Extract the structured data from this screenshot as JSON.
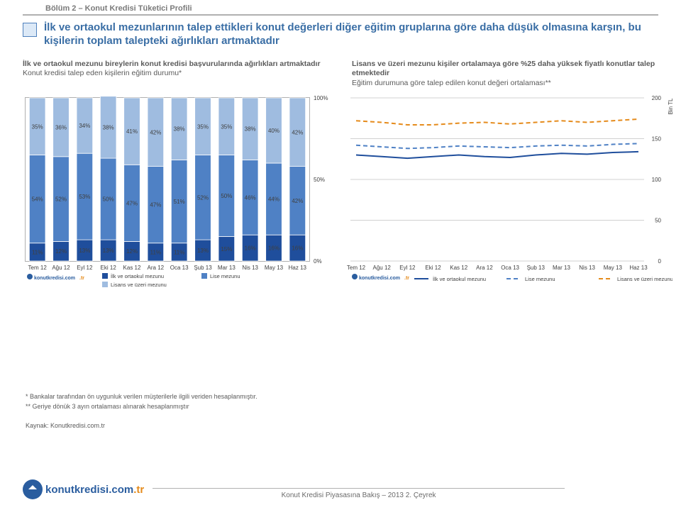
{
  "section_header": "Bölüm 2 – Konut Kredisi Tüketici Profili",
  "highlight": "İlk ve ortaokul mezunlarının talep ettikleri konut değerleri diğer eğitim gruplarına göre daha düşük olmasına karşın, bu kişilerin toplam talepteki ağırlıkları artmaktadır",
  "subtitle_left_l1": "İlk ve ortaokul mezunu bireylerin konut kredisi başvurularında ağırlıkları artmaktadır",
  "subtitle_left_l2": "Konut kredisi talep eden kişilerin eğitim durumu*",
  "subtitle_right_l1": "Lisans ve üzeri mezunu kişiler ortalamaya göre %25 daha yüksek fiyatlı konutlar talep etmektedir",
  "subtitle_right_l2": "Eğitim durumuna göre talep edilen konut değeri ortalaması**",
  "stacked": {
    "type": "stacked-bar-100",
    "categories": [
      "Tem 12",
      "Ağu 12",
      "Eyl 12",
      "Eki 12",
      "Kas 12",
      "Ara 12",
      "Oca 13",
      "Şub 13",
      "Mar 13",
      "Nis 13",
      "May 13",
      "Haz 13"
    ],
    "series": [
      {
        "name": "İlk ve ortaokul mezunu",
        "color": "#1f4e9c",
        "values": [
          11,
          12,
          13,
          13,
          12,
          11,
          11,
          13,
          15,
          16,
          16,
          16
        ]
      },
      {
        "name": "Lise mezunu",
        "color": "#4f81c5",
        "values": [
          54,
          52,
          53,
          50,
          47,
          47,
          51,
          52,
          50,
          46,
          44,
          42
        ]
      },
      {
        "name": "Lisans ve üzeri mezunu",
        "color": "#9fbce0",
        "values": [
          35,
          36,
          34,
          38,
          41,
          42,
          38,
          35,
          35,
          38,
          40,
          42
        ]
      }
    ],
    "ylim": [
      0,
      100
    ],
    "yticks": [
      0,
      50,
      100
    ],
    "ytick_suffix": "%",
    "label_fontsize": 8,
    "grid_color": "#d0d0d0",
    "plot_border_color": "#b0b0b0",
    "background_color": "#ffffff",
    "bar_width": 0.68
  },
  "line": {
    "type": "line",
    "categories": [
      "Tem 12",
      "Ağu 12",
      "Eyl 12",
      "Eki 12",
      "Kas 12",
      "Ara 12",
      "Oca 13",
      "Şub 13",
      "Mar 13",
      "Nis 13",
      "May 13",
      "Haz 13"
    ],
    "series": [
      {
        "name": "İlk ve ortaokul mezunu",
        "color": "#1f4e9c",
        "dash": "solid",
        "values": [
          130,
          128,
          126,
          128,
          130,
          128,
          127,
          130,
          132,
          131,
          133,
          134
        ]
      },
      {
        "name": "Lise mezunu",
        "color": "#4f81c5",
        "dash": "dashed",
        "values": [
          142,
          140,
          138,
          139,
          141,
          140,
          139,
          141,
          142,
          141,
          143,
          144
        ]
      },
      {
        "name": "Lisans ve üzeri mezunu",
        "color": "#e58b1c",
        "dash": "dashed",
        "values": [
          172,
          170,
          167,
          167,
          169,
          170,
          168,
          170,
          172,
          170,
          172,
          174
        ]
      }
    ],
    "ylim": [
      0,
      200
    ],
    "yticks": [
      0,
      50,
      100,
      150,
      200
    ],
    "yaxis_title": "Bin TL",
    "label_fontsize": 8,
    "grid_color": "#d0d0d0",
    "plot_border_color": "#b0b0b0",
    "background_color": "#ffffff"
  },
  "brand": {
    "name": "konutkredisi",
    "suffix": ".com",
    "tld": ".tr"
  },
  "footnote1": "* Bankalar tarafından ön uygunluk verilen müşterilerle ilgili veriden hesaplanmıştır.",
  "footnote2": "** Geriye dönük 3 ayın ortalaması alınarak hesaplanmıştır",
  "source": "Kaynak: Konutkredisi.com.tr",
  "footer_title": "Konut Kredisi Piyasasına Bakış – 2013 2. Çeyrek"
}
